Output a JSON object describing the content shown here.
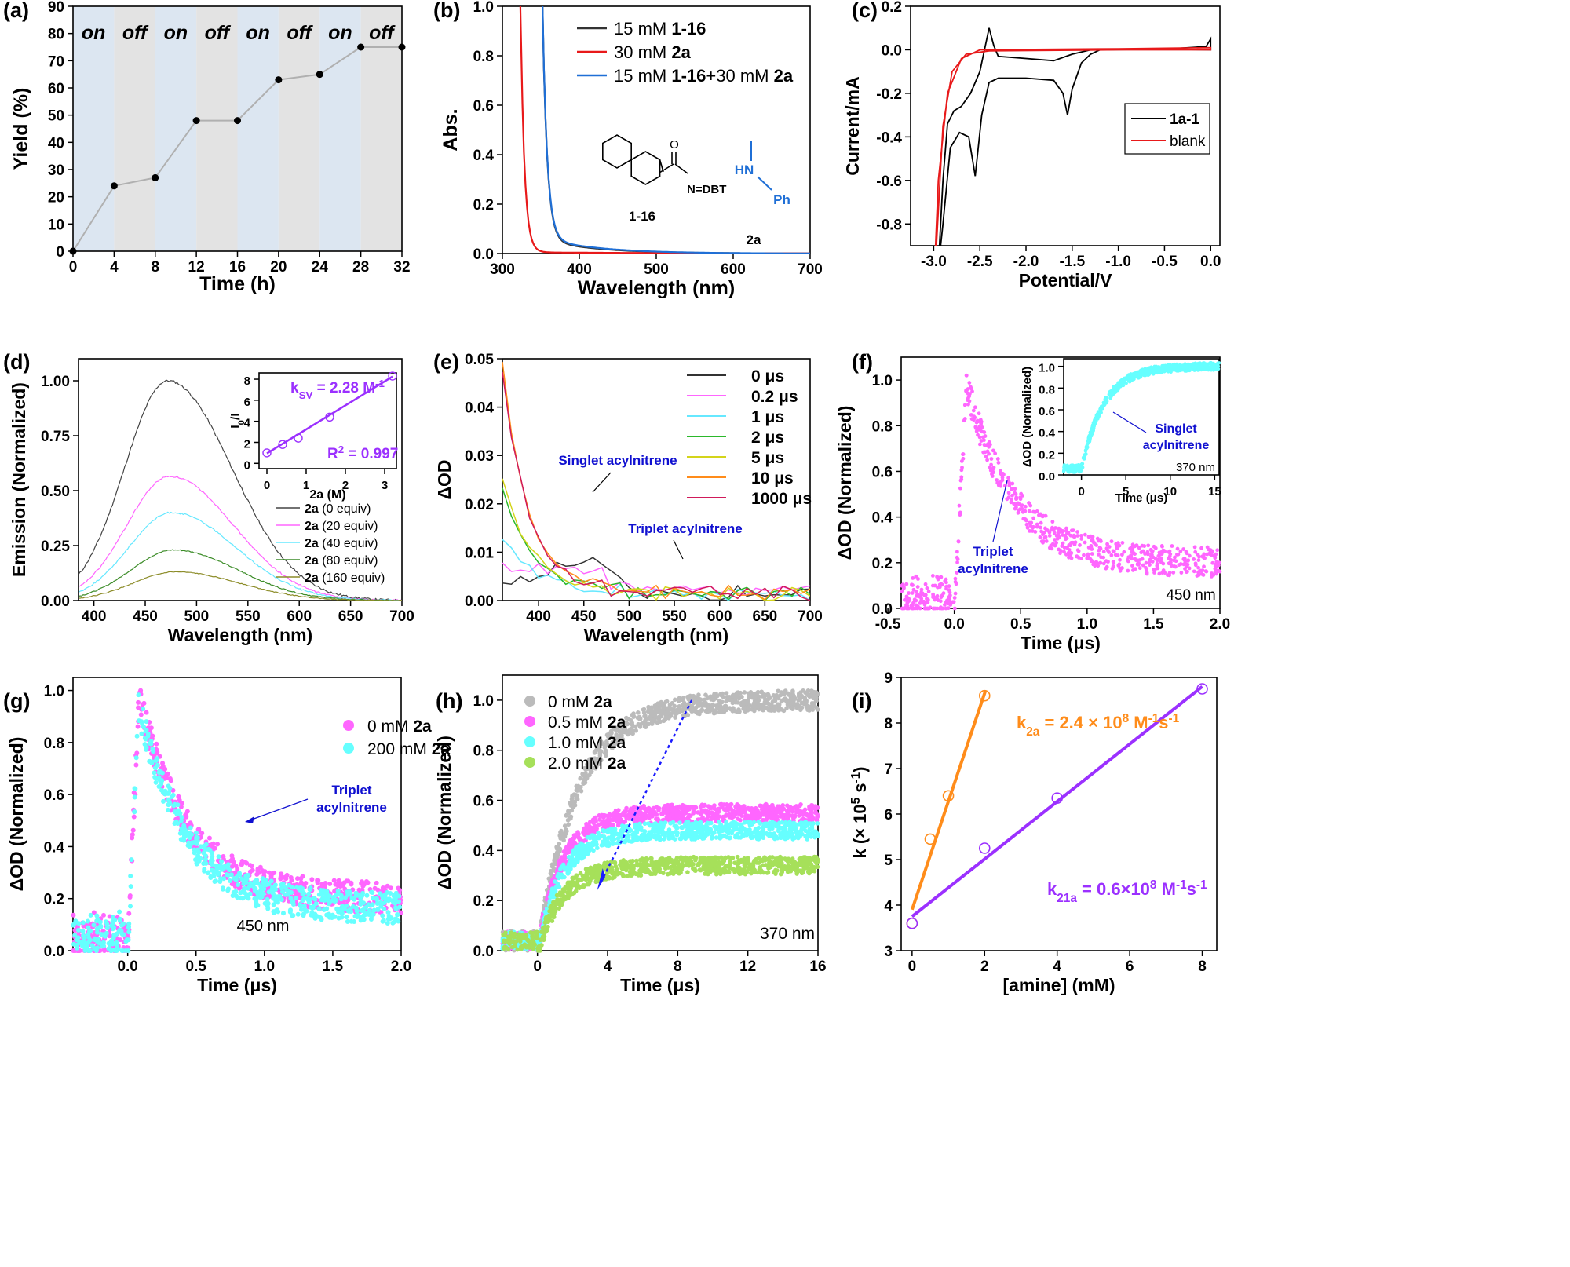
{
  "colors": {
    "axis": "#000000",
    "on_band": "#dce6f1",
    "off_band": "#e3e3e3",
    "pink": "#ff66ff",
    "cyan": "#66ffff",
    "gray": "#b4b4b4",
    "green": "#a6e05a",
    "orange": "#ff8c1a",
    "purple": "#9b30ff",
    "blue": "#1f6fd6",
    "red": "#e8191a",
    "darkblue": "#1010d0"
  },
  "chart_data": [
    {
      "panel": "(a)",
      "type": "line",
      "xlabel": "Time (h)",
      "ylabel": "Yield (%)",
      "xlim": [
        0,
        32
      ],
      "ylim": [
        0,
        90
      ],
      "xticks": [
        0,
        4,
        8,
        12,
        16,
        20,
        24,
        28,
        32
      ],
      "yticks": [
        0,
        10,
        20,
        30,
        40,
        50,
        60,
        70,
        80,
        90
      ],
      "bands": [
        "on",
        "off",
        "on",
        "off",
        "on",
        "off",
        "on",
        "off"
      ],
      "x": [
        0,
        4,
        8,
        12,
        16,
        20,
        24,
        28,
        32
      ],
      "values": [
        0,
        24,
        27,
        48,
        48,
        63,
        65,
        75,
        75
      ]
    },
    {
      "panel": "(b)",
      "type": "line",
      "xlabel": "Wavelength (nm)",
      "ylabel": "Abs.",
      "xlim": [
        300,
        700
      ],
      "ylim": [
        0,
        1.0
      ],
      "xticks": [
        300,
        400,
        500,
        600,
        700
      ],
      "yticks": [
        0.0,
        0.2,
        0.4,
        0.6,
        0.8,
        1.0
      ],
      "series": [
        {
          "name": "15 mM 1-16",
          "plain": "15 mM ",
          "bold": "1-16",
          "bold2": "",
          "color": "#333333"
        },
        {
          "name": "30 mM 2a",
          "plain": "30 mM ",
          "bold": "2a",
          "bold2": "",
          "color": "#e8191a"
        },
        {
          "name": "15 mM 1-16+30 mM 2a",
          "plain": "15 mM ",
          "bold": "1-16",
          "mid": "+30 mM ",
          "bold2": "2a",
          "color": "#1f6fd6"
        }
      ],
      "structures": {
        "label1": "1-16",
        "label2": "2a",
        "dbt": "N=DBT",
        "o": "O",
        "hn": "HN",
        "ph": "Ph"
      }
    },
    {
      "panel": "(c)",
      "type": "line",
      "xlabel": "Potential/V",
      "ylabel": "Current/mA",
      "xlim": [
        -3.25,
        0.1
      ],
      "ylim": [
        -0.9,
        0.2
      ],
      "xticks": [
        -3.0,
        -2.5,
        -2.0,
        -1.5,
        -1.0,
        -0.5,
        0.0
      ],
      "yticks": [
        0.2,
        0.0,
        -0.2,
        -0.4,
        -0.6,
        -0.8
      ],
      "series": [
        {
          "name": "1a-1",
          "color": "#000000"
        },
        {
          "name": "blank",
          "color": "#e8191a"
        }
      ]
    },
    {
      "panel": "(d)",
      "type": "line",
      "xlabel": "Wavelength (nm)",
      "ylabel": "Emission (Normalized)",
      "xlim": [
        385,
        700
      ],
      "ylim": [
        0,
        1.1
      ],
      "xticks": [
        400,
        450,
        500,
        550,
        600,
        650,
        700
      ],
      "yticks": [
        0.0,
        0.25,
        0.5,
        0.75,
        1.0
      ],
      "series": [
        {
          "name": "2a (0 equiv)",
          "suffix": " (0 equiv)",
          "peak": 1.0,
          "color": "#444444"
        },
        {
          "name": "2a (20 equiv)",
          "suffix": " (20 equiv)",
          "peak": 0.565,
          "color": "#ff66ff"
        },
        {
          "name": "2a (40 equiv)",
          "suffix": " (40 equiv)",
          "peak": 0.4,
          "color": "#66e8ff"
        },
        {
          "name": "2a (80 equiv)",
          "suffix": " (80 equiv)",
          "peak": 0.23,
          "color": "#3c8c28"
        },
        {
          "name": "2a (160 equiv)",
          "suffix": " (160 equiv)",
          "peak": 0.13,
          "color": "#8c8c28"
        }
      ],
      "inset": {
        "xlabel": "2a (M)",
        "ylabel": "I0/I",
        "x": [
          0,
          0.4,
          0.8,
          1.6,
          3.2
        ],
        "values": [
          1.0,
          1.8,
          2.4,
          4.4,
          8.3
        ],
        "xticks": [
          0,
          1,
          2,
          3
        ],
        "yticks": [
          0,
          2,
          4,
          6,
          8
        ],
        "ksv": "= 2.28 M",
        "r2": "= 0.997"
      }
    },
    {
      "panel": "(e)",
      "type": "line",
      "xlabel": "Wavelength (nm)",
      "ylabel": "ΔOD",
      "xlim": [
        360,
        700
      ],
      "ylim": [
        0,
        0.05
      ],
      "xticks": [
        400,
        450,
        500,
        550,
        600,
        650,
        700
      ],
      "yticks": [
        0.0,
        0.01,
        0.02,
        0.03,
        0.04,
        0.05
      ],
      "series": [
        {
          "name": "0 μs",
          "color": "#333333"
        },
        {
          "name": "0.2 μs",
          "color": "#ff66ff"
        },
        {
          "name": "1 μs",
          "color": "#66e8ff"
        },
        {
          "name": "2 μs",
          "color": "#2bb82b"
        },
        {
          "name": "5 μs",
          "color": "#d4d41a"
        },
        {
          "name": "10 μs",
          "color": "#ff8c1a"
        },
        {
          "name": "1000 μs",
          "color": "#d01a5a"
        }
      ],
      "annotations": [
        "Singlet acylnitrene",
        "Triplet acylnitrene"
      ]
    },
    {
      "panel": "(f)",
      "type": "scatter",
      "xlabel": "Time (μs)",
      "ylabel": "ΔOD (Normalized)",
      "xlim": [
        -0.4,
        2.0
      ],
      "ylim": [
        0,
        1.1
      ],
      "xticks": [
        -0.5,
        0.0,
        0.5,
        1.0,
        1.5,
        2.0
      ],
      "yticks": [
        0.0,
        0.2,
        0.4,
        0.6,
        0.8,
        1.0
      ],
      "wavelength": "450 nm",
      "annotation": [
        "Triplet",
        "acylnitrene"
      ],
      "inset": {
        "xlabel": "Time (μs)",
        "ylabel": "ΔOD (Normalized)",
        "wavelength": "370 nm",
        "xticks": [
          0,
          5,
          10,
          15
        ],
        "yticks": [
          0.0,
          0.2,
          0.4,
          0.6,
          0.8,
          1.0
        ],
        "annotation": [
          "Singlet",
          "acylnitrene"
        ]
      }
    },
    {
      "panel": "(g)",
      "type": "scatter",
      "xlabel": "Time (μs)",
      "ylabel": "ΔOD (Normalized)",
      "xlim": [
        -0.4,
        2.0
      ],
      "ylim": [
        0,
        1.05
      ],
      "xticks": [
        0.0,
        0.5,
        1.0,
        1.5,
        2.0
      ],
      "yticks": [
        0.0,
        0.2,
        0.4,
        0.6,
        0.8,
        1.0
      ],
      "wavelength": "450 nm",
      "series": [
        {
          "name": "0 mM 2a",
          "prefix": "0 mM ",
          "color": "#ff66ff"
        },
        {
          "name": "200 mM 2a",
          "prefix": "200 mM ",
          "color": "#66ffff"
        }
      ],
      "annotation": [
        "Triplet",
        "acylnitrene"
      ]
    },
    {
      "panel": "(h)",
      "type": "scatter",
      "xlabel": "Time (μs)",
      "ylabel": "ΔOD (Normalized)",
      "xlim": [
        -2,
        16
      ],
      "ylim": [
        0,
        1.1
      ],
      "xticks": [
        0,
        4,
        8,
        12,
        16
      ],
      "yticks": [
        0.0,
        0.2,
        0.4,
        0.6,
        0.8,
        1.0
      ],
      "wavelength": "370 nm",
      "series": [
        {
          "name": "0 mM 2a",
          "prefix": "0  mM ",
          "plateau": 1.0,
          "color": "#bbbbbb"
        },
        {
          "name": "0.5 mM 2a",
          "prefix": "0.5 mM ",
          "plateau": 0.55,
          "color": "#ff66ff"
        },
        {
          "name": "1.0 mM 2a",
          "prefix": "1.0 mM ",
          "plateau": 0.48,
          "color": "#66ffff"
        },
        {
          "name": "2.0 mM 2a",
          "prefix": "2.0 mM ",
          "plateau": 0.34,
          "color": "#a6e05a"
        }
      ]
    },
    {
      "panel": "(i)",
      "type": "scatter",
      "xlabel": "[amine] (mM)",
      "ylabel": "k (× 10⁵ s⁻¹)",
      "xlim": [
        -0.3,
        8.4
      ],
      "ylim": [
        3,
        9
      ],
      "xticks": [
        0,
        2,
        4,
        6,
        8
      ],
      "yticks": [
        3,
        4,
        5,
        6,
        7,
        8,
        9
      ],
      "series": [
        {
          "name": "k2a",
          "x": [
            0,
            0.5,
            1,
            2
          ],
          "values": [
            3.6,
            5.45,
            6.4,
            8.6
          ],
          "color": "#ff8c1a",
          "text": "= 2.4 × 10"
        },
        {
          "name": "k21a",
          "x": [
            0,
            2,
            4,
            8
          ],
          "values": [
            3.6,
            5.25,
            6.35,
            8.75
          ],
          "color": "#9b30ff",
          "text": "= 0.6×10"
        }
      ]
    }
  ]
}
